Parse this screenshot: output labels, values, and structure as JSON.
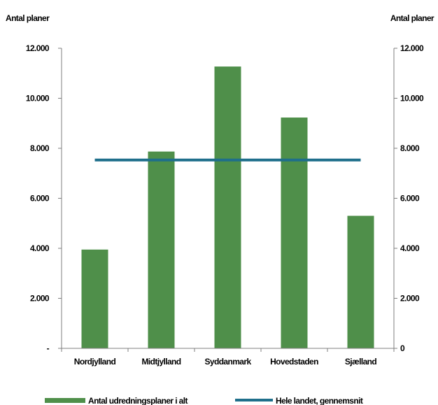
{
  "chart_data": {
    "type": "bar",
    "categories": [
      "Nordjylland",
      "Midtjylland",
      "Syddanmark",
      "Hovedstaden",
      "Sjælland"
    ],
    "series": [
      {
        "name": "Antal udredningsplaner i alt",
        "type": "bar",
        "color": "#4f8f4a",
        "values": [
          3950,
          7870,
          11270,
          9230,
          5300
        ]
      },
      {
        "name": "Hele landet, gennemsnit",
        "type": "line",
        "color": "#1f6f8b",
        "values": [
          7530,
          7530,
          7530,
          7530,
          7530
        ]
      }
    ],
    "ylabel_left": "Antal planer",
    "ylabel_right": "Antal planer",
    "ylim": [
      0,
      12000
    ],
    "y_ticks_left": [
      "-",
      "2.000",
      "4.000",
      "6.000",
      "8.000",
      "10.000",
      "12.000"
    ],
    "y_ticks_right": [
      "0",
      "2.000",
      "4.000",
      "6.000",
      "8.000",
      "10.000",
      "12.000"
    ],
    "grid": false,
    "legend_position": "bottom"
  }
}
